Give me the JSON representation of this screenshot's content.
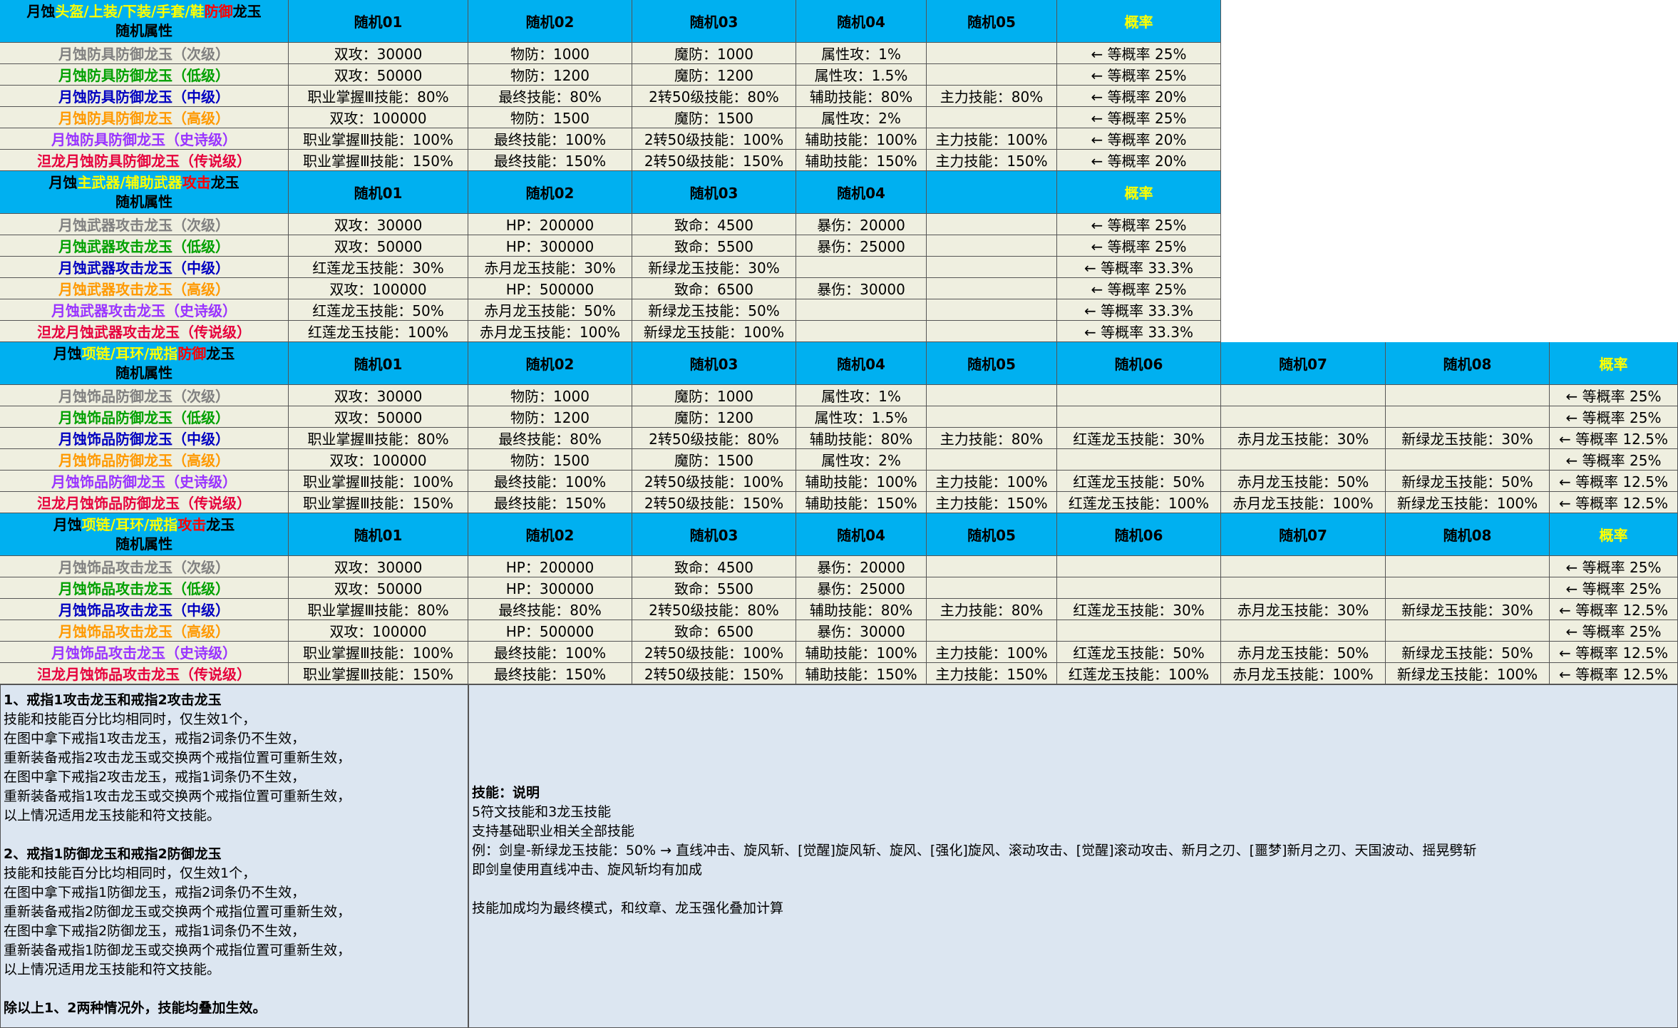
{
  "sections": [
    {
      "title_parts": [
        {
          "text": "月蚀",
          "color": "#000000"
        },
        {
          "text": "头盔/上装/下装/手套/鞋",
          "color": "#ffff00"
        },
        {
          "text": "防御",
          "color": "#ff0000"
        },
        {
          "text": "龙玉",
          "color": "#000000"
        }
      ],
      "subtitle": "随机属性",
      "headers": [
        "随机01",
        "随机02",
        "随机03",
        "随机04",
        "随机05"
      ],
      "prob_header": "概率",
      "rows": [
        {
          "name": "月蚀防具防御龙玉（次级）",
          "color": "#808080",
          "cells": [
            "双攻：30000",
            "物防：1000",
            "魔防：1000",
            "属性攻：1%",
            null
          ],
          "prob": "← 等概率 25%"
        },
        {
          "name": "月蚀防具防御龙玉（低级）",
          "color": "#00a000",
          "cells": [
            "双攻：50000",
            "物防：1200",
            "魔防：1200",
            "属性攻：1.5%",
            null
          ],
          "prob": "← 等概率 25%"
        },
        {
          "name": "月蚀防具防御龙玉（中级）",
          "color": "#0000c0",
          "cells": [
            "职业掌握Ⅲ技能：80%",
            "最终技能：80%",
            "2转50级技能：80%",
            "辅助技能：80%",
            "主力技能：80%"
          ],
          "prob": "← 等概率 20%"
        },
        {
          "name": "月蚀防具防御龙玉（高级）",
          "color": "#ff9900",
          "cells": [
            "双攻：100000",
            "物防：1500",
            "魔防：1500",
            "属性攻：2%",
            null
          ],
          "prob": "← 等概率 25%"
        },
        {
          "name": "月蚀防具防御龙玉（史诗级）",
          "color": "#9933ff",
          "cells": [
            "职业掌握Ⅲ技能：100%",
            "最终技能：100%",
            "2转50级技能：100%",
            "辅助技能：100%",
            "主力技能：100%"
          ],
          "prob": "← 等概率 20%"
        },
        {
          "name": "泹龙月蚀防具防御龙玉（传说级）",
          "color": "#e6003c",
          "cells": [
            "职业掌握Ⅲ技能：150%",
            "最终技能：150%",
            "2转50级技能：150%",
            "辅助技能：150%",
            "主力技能：150%"
          ],
          "prob": "← 等概率 20%"
        }
      ]
    },
    {
      "title_parts": [
        {
          "text": "月蚀",
          "color": "#000000"
        },
        {
          "text": "主武器/辅助武器",
          "color": "#ffff00"
        },
        {
          "text": "攻击",
          "color": "#ff0000"
        },
        {
          "text": "龙玉",
          "color": "#000000"
        }
      ],
      "subtitle": "随机属性",
      "headers": [
        "随机01",
        "随机02",
        "随机03",
        "随机04",
        null
      ],
      "prob_header": "概率",
      "rows": [
        {
          "name": "月蚀武器攻击龙玉（次级）",
          "color": "#808080",
          "cells": [
            "双攻：30000",
            "HP：200000",
            "致命：4500",
            "暴伤：20000",
            null
          ],
          "prob": "← 等概率 25%"
        },
        {
          "name": "月蚀武器攻击龙玉（低级）",
          "color": "#00a000",
          "cells": [
            "双攻：50000",
            "HP：300000",
            "致命：5500",
            "暴伤：25000",
            null
          ],
          "prob": "← 等概率 25%"
        },
        {
          "name": "月蚀武器攻击龙玉（中级）",
          "color": "#0000c0",
          "cells": [
            "红莲龙玉技能：30%",
            "赤月龙玉技能：30%",
            "新绿龙玉技能：30%",
            null,
            null
          ],
          "prob": "← 等概率 33.3%"
        },
        {
          "name": "月蚀武器攻击龙玉（高级）",
          "color": "#ff9900",
          "cells": [
            "双攻：100000",
            "HP：500000",
            "致命：6500",
            "暴伤：30000",
            null
          ],
          "prob": "← 等概率 25%"
        },
        {
          "name": "月蚀武器攻击龙玉（史诗级）",
          "color": "#9933ff",
          "cells": [
            "红莲龙玉技能：50%",
            "赤月龙玉技能：50%",
            "新绿龙玉技能：50%",
            null,
            null
          ],
          "prob": "← 等概率 33.3%"
        },
        {
          "name": "泹龙月蚀武器攻击龙玉（传说级）",
          "color": "#e6003c",
          "cells": [
            "红莲龙玉技能：100%",
            "赤月龙玉技能：100%",
            "新绿龙玉技能：100%",
            null,
            null
          ],
          "prob": "← 等概率 33.3%"
        }
      ]
    },
    {
      "title_parts": [
        {
          "text": "月蚀",
          "color": "#000000"
        },
        {
          "text": "项链/耳环/戒指",
          "color": "#ffff00"
        },
        {
          "text": "防御",
          "color": "#ff0000"
        },
        {
          "text": "龙玉",
          "color": "#000000"
        }
      ],
      "subtitle": "随机属性",
      "headers": [
        "随机01",
        "随机02",
        "随机03",
        "随机04",
        "随机05",
        "随机06",
        "随机07",
        "随机08"
      ],
      "prob_header": "概率",
      "rows": [
        {
          "name": "月蚀饰品防御龙玉（次级）",
          "color": "#808080",
          "cells": [
            "双攻：30000",
            "物防：1000",
            "魔防：1000",
            "属性攻：1%",
            null,
            null,
            null,
            null
          ],
          "prob": "← 等概率 25%"
        },
        {
          "name": "月蚀饰品防御龙玉（低级）",
          "color": "#00a000",
          "cells": [
            "双攻：50000",
            "物防：1200",
            "魔防：1200",
            "属性攻：1.5%",
            null,
            null,
            null,
            null
          ],
          "prob": "← 等概率 25%"
        },
        {
          "name": "月蚀饰品防御龙玉（中级）",
          "color": "#0000c0",
          "cells": [
            "职业掌握Ⅲ技能：80%",
            "最终技能：80%",
            "2转50级技能：80%",
            "辅助技能：80%",
            "主力技能：80%",
            "红莲龙玉技能：30%",
            "赤月龙玉技能：30%",
            "新绿龙玉技能：30%"
          ],
          "prob": "← 等概率 12.5%"
        },
        {
          "name": "月蚀饰品防御龙玉（高级）",
          "color": "#ff9900",
          "cells": [
            "双攻：100000",
            "物防：1500",
            "魔防：1500",
            "属性攻：2%",
            null,
            null,
            null,
            null
          ],
          "prob": "← 等概率 25%"
        },
        {
          "name": "月蚀饰品防御龙玉（史诗级）",
          "color": "#9933ff",
          "cells": [
            "职业掌握Ⅲ技能：100%",
            "最终技能：100%",
            "2转50级技能：100%",
            "辅助技能：100%",
            "主力技能：100%",
            "红莲龙玉技能：50%",
            "赤月龙玉技能：50%",
            "新绿龙玉技能：50%"
          ],
          "prob": "← 等概率 12.5%"
        },
        {
          "name": "泹龙月蚀饰品防御龙玉（传说级）",
          "color": "#e6003c",
          "cells": [
            "职业掌握Ⅲ技能：150%",
            "最终技能：150%",
            "2转50级技能：150%",
            "辅助技能：150%",
            "主力技能：150%",
            "红莲龙玉技能：100%",
            "赤月龙玉技能：100%",
            "新绿龙玉技能：100%"
          ],
          "prob": "← 等概率 12.5%"
        }
      ]
    },
    {
      "title_parts": [
        {
          "text": "月蚀",
          "color": "#000000"
        },
        {
          "text": "项链/耳环/戒指",
          "color": "#ffff00"
        },
        {
          "text": "攻击",
          "color": "#ff0000"
        },
        {
          "text": "龙玉",
          "color": "#000000"
        }
      ],
      "subtitle": "随机属性",
      "headers": [
        "随机01",
        "随机02",
        "随机03",
        "随机04",
        "随机05",
        "随机06",
        "随机07",
        "随机08"
      ],
      "prob_header": "概率",
      "rows": [
        {
          "name": "月蚀饰品攻击龙玉（次级）",
          "color": "#808080",
          "cells": [
            "双攻：30000",
            "HP：200000",
            "致命：4500",
            "暴伤：20000",
            null,
            null,
            null,
            null
          ],
          "prob": "← 等概率 25%"
        },
        {
          "name": "月蚀饰品攻击龙玉（低级）",
          "color": "#00a000",
          "cells": [
            "双攻：50000",
            "HP：300000",
            "致命：5500",
            "暴伤：25000",
            null,
            null,
            null,
            null
          ],
          "prob": "← 等概率 25%"
        },
        {
          "name": "月蚀饰品攻击龙玉（中级）",
          "color": "#0000c0",
          "cells": [
            "职业掌握Ⅲ技能：80%",
            "最终技能：80%",
            "2转50级技能：80%",
            "辅助技能：80%",
            "主力技能：80%",
            "红莲龙玉技能：30%",
            "赤月龙玉技能：30%",
            "新绿龙玉技能：30%"
          ],
          "prob": "← 等概率 12.5%"
        },
        {
          "name": "月蚀饰品攻击龙玉（高级）",
          "color": "#ff9900",
          "cells": [
            "双攻：100000",
            "HP：500000",
            "致命：6500",
            "暴伤：30000",
            null,
            null,
            null,
            null
          ],
          "prob": "← 等概率 25%"
        },
        {
          "name": "月蚀饰品攻击龙玉（史诗级）",
          "color": "#9933ff",
          "cells": [
            "职业掌握Ⅲ技能：100%",
            "最终技能：100%",
            "2转50级技能：100%",
            "辅助技能：100%",
            "主力技能：100%",
            "红莲龙玉技能：50%",
            "赤月龙玉技能：50%",
            "新绿龙玉技能：50%"
          ],
          "prob": "← 等概率 12.5%"
        },
        {
          "name": "泹龙月蚀饰品攻击龙玉（传说级）",
          "color": "#e6003c",
          "cells": [
            "职业掌握Ⅲ技能：150%",
            "最终技能：150%",
            "2转50级技能：150%",
            "辅助技能：150%",
            "主力技能：150%",
            "红莲龙玉技能：100%",
            "赤月龙玉技能：100%",
            "新绿龙玉技能：100%"
          ],
          "prob": "← 等概率 12.5%"
        }
      ]
    }
  ],
  "notes_left": {
    "sections": [
      {
        "heading": "1、戒指1攻击龙玉和戒指2攻击龙玉",
        "lines": [
          "技能和技能百分比均相同时，仅生效1个，",
          "在图中拿下戒指1攻击龙玉，戒指2词条仍不生效，",
          "重新装备戒指2攻击龙玉或交换两个戒指位置可重新生效，",
          "在图中拿下戒指2攻击龙玉，戒指1词条仍不生效，",
          "重新装备戒指1攻击龙玉或交换两个戒指位置可重新生效，",
          "以上情况适用龙玉技能和符文技能。"
        ]
      },
      {
        "heading": "2、戒指1防御龙玉和戒指2防御龙玉",
        "lines": [
          "技能和技能百分比均相同时，仅生效1个，",
          "在图中拿下戒指1防御龙玉，戒指2词条仍不生效，",
          "重新装备戒指2防御龙玉或交换两个戒指位置可重新生效，",
          "在图中拿下戒指2防御龙玉，戒指1词条仍不生效，",
          "重新装备戒指1防御龙玉或交换两个戒指位置可重新生效，",
          "以上情况适用龙玉技能和符文技能。"
        ]
      }
    ],
    "footer": "除以上1、2两种情况外，技能均叠加生效。"
  },
  "notes_right": {
    "heading": "技能：说明",
    "lines": [
      "5符文技能和3龙玉技能",
      "支持基础职业相关全部技能",
      "例：剑皇-新绿龙玉技能：50% → 直线冲击、旋风斩、[觉醒]旋风斩、旋风、[强化]旋风、滚动攻击、[觉醒]滚动攻击、新月之刃、[噩梦]新月之刃、天国波动、摇晃劈斩",
      "即剑皇使用直线冲击、旋风斩均有加成"
    ],
    "footer": "技能加成均为最终模式，和纹章、龙玉强化叠加计算"
  }
}
